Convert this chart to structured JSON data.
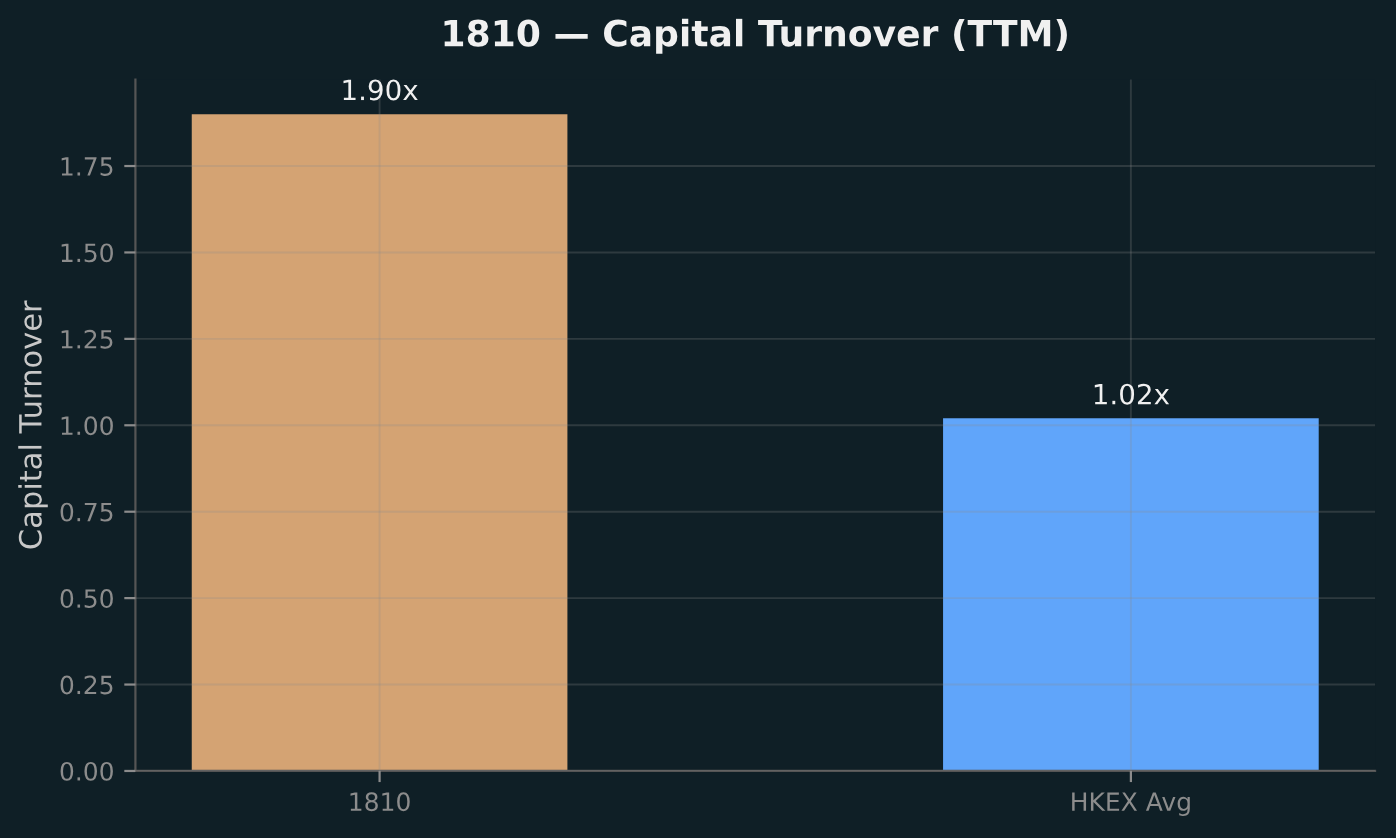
{
  "chart_data": {
    "type": "bar",
    "title": "1810 — Capital Turnover (TTM)",
    "ylabel": "Capital Turnover",
    "categories": [
      "1810",
      "HKEX Avg"
    ],
    "values": [
      1.9,
      1.02
    ],
    "colors": [
      "#d4a373",
      "#60a5fa"
    ],
    "value_labels": [
      "1.90x",
      "1.02x"
    ],
    "ylim": [
      0,
      2.0
    ],
    "yticks": [
      {
        "value": 0,
        "label": "0.00"
      },
      0.25,
      {
        "value": 0.5,
        "label": "0.50"
      },
      0.75,
      {
        "value": 1,
        "label": "1.00"
      },
      1.25,
      {
        "value": 1.5,
        "label": "1.50"
      },
      1.75
    ],
    "grid": true
  }
}
